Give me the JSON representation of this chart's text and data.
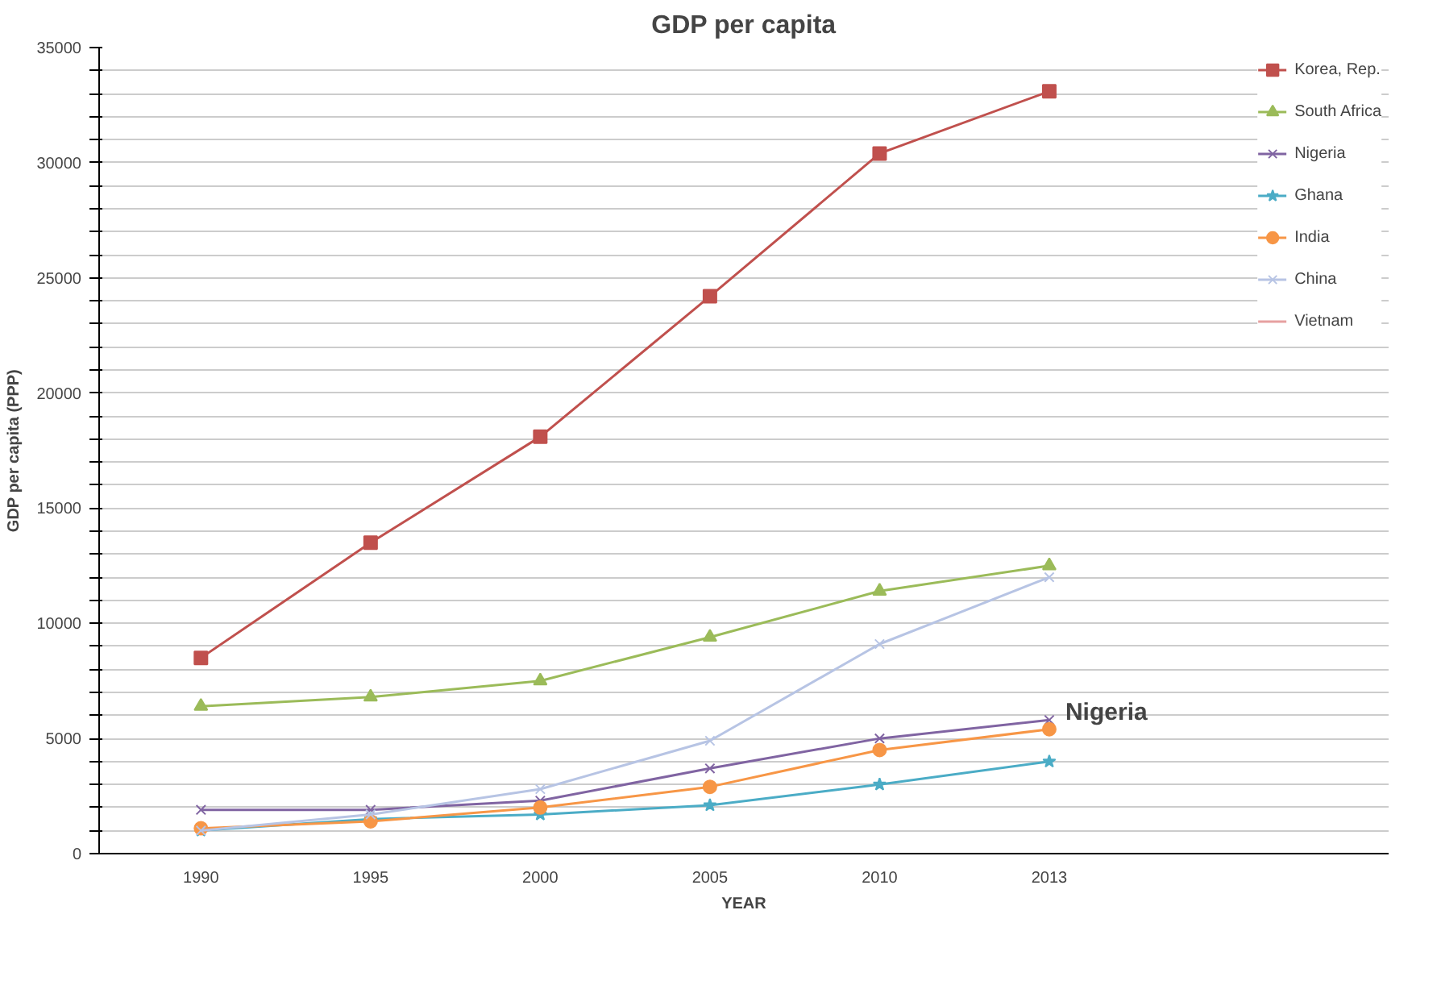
{
  "chart_data": {
    "type": "line",
    "title": "GDP per capita",
    "xlabel": "YEAR",
    "ylabel": "GDP per capita (PPP)",
    "categories": [
      "1990",
      "1995",
      "2000",
      "2005",
      "2010",
      "2013"
    ],
    "series": [
      {
        "name": "Korea, Rep.",
        "color": "#c0504d",
        "marker": "square",
        "values": [
          8500,
          13500,
          18100,
          24200,
          30400,
          33100
        ]
      },
      {
        "name": "South Africa",
        "color": "#9bbb59",
        "marker": "triangle",
        "values": [
          6400,
          6800,
          7500,
          9400,
          11400,
          12500
        ]
      },
      {
        "name": "Nigeria",
        "color": "#8064a2",
        "marker": "cross",
        "values": [
          1900,
          1900,
          2300,
          3700,
          5000,
          5800
        ]
      },
      {
        "name": "Ghana",
        "color": "#4bacc6",
        "marker": "star",
        "values": [
          1000,
          1500,
          1700,
          2100,
          3000,
          4000
        ]
      },
      {
        "name": "India",
        "color": "#f79646",
        "marker": "circle",
        "values": [
          1100,
          1400,
          2000,
          2900,
          4500,
          5400
        ]
      },
      {
        "name": "China",
        "color": "#b7c4e4",
        "marker": "cross",
        "values": [
          1000,
          1700,
          2800,
          4900,
          9100,
          12000
        ]
      },
      {
        "name": "Vietnam",
        "color": "#e6a0a0",
        "marker": "none",
        "values": [
          null,
          null,
          null,
          null,
          null,
          null
        ]
      }
    ],
    "ylim": [
      0,
      35000
    ],
    "yticks": [
      0,
      {
        "value": 1000,
        "label": null
      },
      {
        "value": 2000,
        "label": null
      },
      {
        "value": 3000,
        "label": null
      },
      {
        "value": 4000,
        "label": null
      },
      5000,
      {
        "value": 6000,
        "label": null
      },
      {
        "value": 7000,
        "label": null
      },
      {
        "value": 8000,
        "label": null
      },
      {
        "value": 9000,
        "label": null
      },
      10000,
      {
        "value": 11000,
        "label": null
      },
      {
        "value": 12000,
        "label": null
      },
      {
        "value": 13000,
        "label": null
      },
      {
        "value": 14000,
        "label": null
      },
      15000,
      {
        "value": 16000,
        "label": null
      },
      {
        "value": 17000,
        "label": null
      },
      {
        "value": 18000,
        "label": null
      },
      {
        "value": 19000,
        "label": null
      },
      20000,
      {
        "value": 21000,
        "label": null
      },
      {
        "value": 22000,
        "label": null
      },
      {
        "value": 23000,
        "label": null
      },
      {
        "value": 24000,
        "label": null
      },
      25000,
      {
        "value": 26000,
        "label": null
      },
      {
        "value": 27000,
        "label": null
      },
      {
        "value": 28000,
        "label": null
      },
      {
        "value": 29000,
        "label": null
      },
      30000,
      {
        "value": 31000,
        "label": null
      },
      {
        "value": 32000,
        "label": null
      },
      {
        "value": 33000,
        "label": null
      },
      {
        "value": 34000,
        "label": null
      },
      35000
    ],
    "grid": "y",
    "legend": "right",
    "line_style": "solid",
    "annotations": [
      {
        "text": "Nigeria",
        "x": "2013",
        "y": 5800
      }
    ]
  }
}
